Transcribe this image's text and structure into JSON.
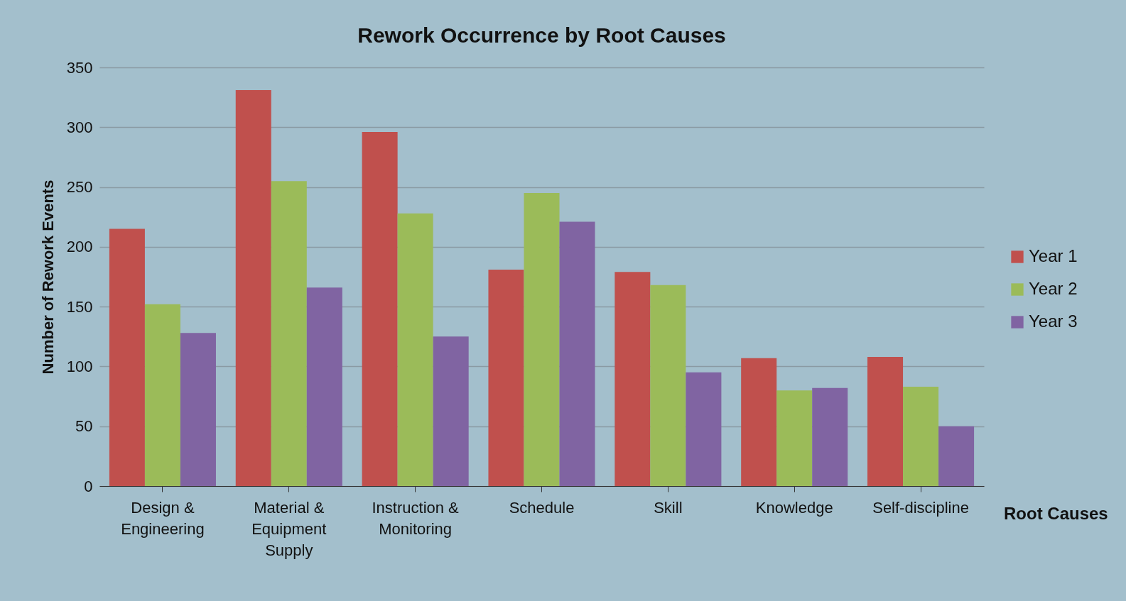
{
  "chart_data": {
    "type": "bar",
    "title": "Rework Occurrence by Root Causes",
    "xlabel": "Root Causes",
    "ylabel": "Number of Rework Events",
    "categories": [
      "Design & Engineering",
      "Material & Equipment Supply",
      "Instruction & Monitoring",
      "Schedule",
      "Skill",
      "Knowledge",
      "Self-discipline"
    ],
    "series": [
      {
        "name": "Year 1",
        "color": "#c0504d",
        "values": [
          215,
          331,
          296,
          181,
          179,
          107,
          108
        ]
      },
      {
        "name": "Year 2",
        "color": "#9bbb59",
        "values": [
          152,
          255,
          228,
          245,
          168,
          80,
          83
        ]
      },
      {
        "name": "Year 3",
        "color": "#8064a2",
        "values": [
          128,
          166,
          125,
          221,
          95,
          82,
          50
        ]
      }
    ],
    "ylim": [
      0,
      350
    ],
    "yticks": [
      0,
      50,
      100,
      150,
      200,
      250,
      300,
      350
    ],
    "grid": "y",
    "legend": "right"
  }
}
